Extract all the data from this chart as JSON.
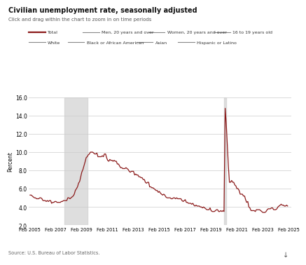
{
  "title": "Civilian unemployment rate, seasonally adjusted",
  "subtitle": "Click and drag within the chart to zoom in on time periods",
  "ylabel": "Percent",
  "source": "Source: U.S. Bureau of Labor Statistics.",
  "line_color": "#8B1A1A",
  "background_color": "#ffffff",
  "recession1_start": 2007.75,
  "recession1_end": 2009.5,
  "recession2_start": 2020.08,
  "recession2_end": 2020.25,
  "ylim": [
    2.0,
    16.0
  ],
  "yticks": [
    2.0,
    4.0,
    6.0,
    8.0,
    10.0,
    12.0,
    14.0,
    16.0
  ],
  "legend_row1": [
    {
      "label": "Total",
      "color": "#8B1A1A",
      "thick": true
    },
    {
      "label": "Men, 20 years and over",
      "color": "#888888"
    },
    {
      "label": "Women, 20 years and over",
      "color": "#888888"
    },
    {
      "label": "16 to 19 years old",
      "color": "#888888"
    }
  ],
  "legend_row2": [
    {
      "label": "White",
      "color": "#888888"
    },
    {
      "label": "Black or African American",
      "color": "#888888"
    },
    {
      "label": "Asian",
      "color": "#888888"
    },
    {
      "label": "Hispanic or Latino",
      "color": "#888888"
    }
  ],
  "dates": [
    2005.08,
    2005.17,
    2005.25,
    2005.33,
    2005.42,
    2005.5,
    2005.58,
    2005.67,
    2005.75,
    2005.83,
    2005.92,
    2006.0,
    2006.08,
    2006.17,
    2006.25,
    2006.33,
    2006.42,
    2006.5,
    2006.58,
    2006.67,
    2006.75,
    2006.83,
    2006.92,
    2007.0,
    2007.08,
    2007.17,
    2007.25,
    2007.33,
    2007.42,
    2007.5,
    2007.58,
    2007.67,
    2007.75,
    2007.83,
    2007.92,
    2008.0,
    2008.08,
    2008.17,
    2008.25,
    2008.33,
    2008.42,
    2008.5,
    2008.58,
    2008.67,
    2008.75,
    2008.83,
    2008.92,
    2009.0,
    2009.08,
    2009.17,
    2009.25,
    2009.33,
    2009.42,
    2009.5,
    2009.58,
    2009.67,
    2009.75,
    2009.83,
    2009.92,
    2010.0,
    2010.08,
    2010.17,
    2010.25,
    2010.33,
    2010.42,
    2010.5,
    2010.58,
    2010.67,
    2010.75,
    2010.83,
    2010.92,
    2011.0,
    2011.08,
    2011.17,
    2011.25,
    2011.33,
    2011.42,
    2011.5,
    2011.58,
    2011.67,
    2011.75,
    2011.83,
    2011.92,
    2012.0,
    2012.08,
    2012.17,
    2012.25,
    2012.33,
    2012.42,
    2012.5,
    2012.58,
    2012.67,
    2012.75,
    2012.83,
    2012.92,
    2013.0,
    2013.08,
    2013.17,
    2013.25,
    2013.33,
    2013.42,
    2013.5,
    2013.58,
    2013.67,
    2013.75,
    2013.83,
    2013.92,
    2014.0,
    2014.08,
    2014.17,
    2014.25,
    2014.33,
    2014.42,
    2014.5,
    2014.58,
    2014.67,
    2014.75,
    2014.83,
    2014.92,
    2015.0,
    2015.08,
    2015.17,
    2015.25,
    2015.33,
    2015.42,
    2015.5,
    2015.58,
    2015.67,
    2015.75,
    2015.83,
    2015.92,
    2016.0,
    2016.08,
    2016.17,
    2016.25,
    2016.33,
    2016.42,
    2016.5,
    2016.58,
    2016.67,
    2016.75,
    2016.83,
    2016.92,
    2017.0,
    2017.08,
    2017.17,
    2017.25,
    2017.33,
    2017.42,
    2017.5,
    2017.58,
    2017.67,
    2017.75,
    2017.83,
    2017.92,
    2018.0,
    2018.08,
    2018.17,
    2018.25,
    2018.33,
    2018.42,
    2018.5,
    2018.58,
    2018.67,
    2018.75,
    2018.83,
    2018.92,
    2019.0,
    2019.08,
    2019.17,
    2019.25,
    2019.33,
    2019.42,
    2019.5,
    2019.58,
    2019.67,
    2019.75,
    2019.83,
    2019.92,
    2020.0,
    2020.08,
    2020.17,
    2020.25,
    2020.33,
    2020.42,
    2020.5,
    2020.58,
    2020.67,
    2020.75,
    2020.83,
    2020.92,
    2021.0,
    2021.08,
    2021.17,
    2021.25,
    2021.33,
    2021.42,
    2021.5,
    2021.58,
    2021.67,
    2021.75,
    2021.83,
    2021.92,
    2022.0,
    2022.08,
    2022.17,
    2022.25,
    2022.33,
    2022.42,
    2022.5,
    2022.58,
    2022.67,
    2022.75,
    2022.83,
    2022.92,
    2023.0,
    2023.08,
    2023.17,
    2023.25,
    2023.33,
    2023.42,
    2023.5,
    2023.58,
    2023.67,
    2023.75,
    2023.83,
    2023.92,
    2024.0,
    2024.08,
    2024.17,
    2024.25,
    2024.33,
    2024.42,
    2024.5,
    2024.58,
    2024.67,
    2024.75,
    2024.83,
    2024.92,
    2025.0
  ],
  "values": [
    5.3,
    5.3,
    5.2,
    5.1,
    5.0,
    5.0,
    4.9,
    4.9,
    4.9,
    5.0,
    5.0,
    4.9,
    4.7,
    4.7,
    4.7,
    4.6,
    4.7,
    4.6,
    4.7,
    4.7,
    4.4,
    4.5,
    4.5,
    4.6,
    4.6,
    4.5,
    4.5,
    4.5,
    4.5,
    4.6,
    4.6,
    4.7,
    4.7,
    4.7,
    4.7,
    5.0,
    5.0,
    4.9,
    5.0,
    5.1,
    5.2,
    5.4,
    5.8,
    6.0,
    6.2,
    6.6,
    6.8,
    7.3,
    7.8,
    8.1,
    8.5,
    8.9,
    9.4,
    9.5,
    9.7,
    9.8,
    10.0,
    10.0,
    10.0,
    9.9,
    9.8,
    9.8,
    9.9,
    9.5,
    9.5,
    9.5,
    9.5,
    9.6,
    9.5,
    9.8,
    9.8,
    9.4,
    9.1,
    9.0,
    9.2,
    9.1,
    9.1,
    9.0,
    9.1,
    9.0,
    9.0,
    8.7,
    8.7,
    8.5,
    8.3,
    8.3,
    8.2,
    8.2,
    8.2,
    8.3,
    8.2,
    8.1,
    7.9,
    7.8,
    7.9,
    7.9,
    7.9,
    7.5,
    7.6,
    7.5,
    7.5,
    7.3,
    7.3,
    7.2,
    7.2,
    7.0,
    7.0,
    6.7,
    6.6,
    6.7,
    6.7,
    6.2,
    6.2,
    6.1,
    6.1,
    6.0,
    5.9,
    5.8,
    5.8,
    5.6,
    5.7,
    5.5,
    5.4,
    5.3,
    5.4,
    5.3,
    5.1,
    5.0,
    5.0,
    5.0,
    5.0,
    4.9,
    4.9,
    5.0,
    5.0,
    4.9,
    5.0,
    4.9,
    4.9,
    4.9,
    4.9,
    4.7,
    4.6,
    4.7,
    4.8,
    4.5,
    4.5,
    4.4,
    4.4,
    4.4,
    4.3,
    4.4,
    4.2,
    4.1,
    4.2,
    4.1,
    4.1,
    4.1,
    4.0,
    4.0,
    3.9,
    4.0,
    3.9,
    3.8,
    3.7,
    3.7,
    3.7,
    3.9,
    3.6,
    3.5,
    3.5,
    3.5,
    3.6,
    3.7,
    3.7,
    3.5,
    3.5,
    3.6,
    3.5,
    3.6,
    3.5,
    14.8,
    13.2,
    11.0,
    8.4,
    6.7,
    6.7,
    6.9,
    6.7,
    6.7,
    6.4,
    6.3,
    6.0,
    6.0,
    5.8,
    5.4,
    5.4,
    5.4,
    5.2,
    5.2,
    4.8,
    4.5,
    4.6,
    4.0,
    3.9,
    3.6,
    3.6,
    3.6,
    3.6,
    3.5,
    3.7,
    3.7,
    3.7,
    3.7,
    3.6,
    3.5,
    3.4,
    3.4,
    3.4,
    3.5,
    3.7,
    3.8,
    3.8,
    3.8,
    3.9,
    3.9,
    3.7,
    3.7,
    3.7,
    3.8,
    4.0,
    4.1,
    4.2,
    4.3,
    4.2,
    4.2,
    4.1,
    4.1,
    4.2,
    4.1
  ],
  "xtick_positions": [
    2005.08,
    2007.08,
    2009.08,
    2011.08,
    2013.08,
    2015.08,
    2017.08,
    2019.08,
    2021.08,
    2023.08,
    2025.08
  ],
  "xtick_labels": [
    "Feb 2005",
    "Feb 2007",
    "Feb 2009",
    "Feb 2011",
    "Feb 2013",
    "Feb 2015",
    "Feb 2017",
    "Feb 2019",
    "Feb 2021",
    "Feb 2023",
    "Feb 2025"
  ]
}
